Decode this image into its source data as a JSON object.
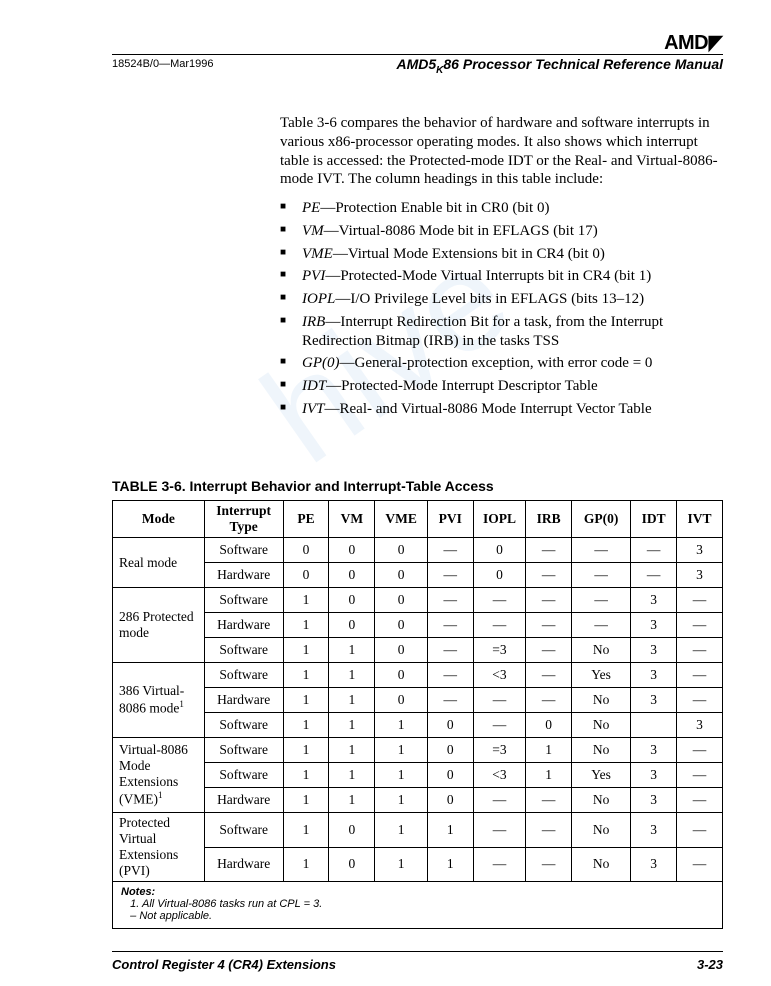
{
  "header": {
    "brand": "AMD",
    "doc_id": "18524B/0—Mar1996",
    "manual_title": "AMD5K86 Processor Technical Reference Manual",
    "manual_title_prefix": "AMD5",
    "manual_title_sub": "K",
    "manual_title_suffix": "86 Processor Technical Reference Manual"
  },
  "intro": "Table 3-6 compares the behavior of hardware and software interrupts in various x86-processor operating modes. It also shows which interrupt table is accessed: the Protected-mode IDT or the Real- and Virtual-8086-mode IVT. The column headings in this table include:",
  "bullets": [
    {
      "term": "PE",
      "desc": "—Protection Enable bit in CR0 (bit 0)"
    },
    {
      "term": "VM",
      "desc": "—Virtual-8086 Mode bit in EFLAGS (bit 17)"
    },
    {
      "term": "VME",
      "desc": "—Virtual Mode Extensions bit in CR4 (bit 0)"
    },
    {
      "term": "PVI",
      "desc": "—Protected-Mode Virtual Interrupts bit in CR4 (bit 1)"
    },
    {
      "term": "IOPL",
      "desc": "—I/O Privilege Level bits in EFLAGS (bits 13–12)"
    },
    {
      "term": "IRB",
      "desc": "—Interrupt Redirection Bit for a task, from the Interrupt Redirection Bitmap (IRB) in the tasks TSS"
    },
    {
      "term": "GP(0)",
      "desc": "—General-protection exception, with error code = 0"
    },
    {
      "term": "IDT",
      "desc": "—Protected-Mode Interrupt Descriptor Table"
    },
    {
      "term": "IVT",
      "desc": "—Real- and Virtual-8086 Mode Interrupt Vector Table"
    }
  ],
  "table": {
    "title": "TABLE 3-6.   Interrupt Behavior and Interrupt-Table Access",
    "columns": [
      "Mode",
      "Interrupt Type",
      "PE",
      "VM",
      "VME",
      "PVI",
      "IOPL",
      "IRB",
      "GP(0)",
      "IDT",
      "IVT"
    ],
    "col_widths": [
      "14%",
      "12%",
      "7%",
      "7%",
      "8%",
      "7%",
      "8%",
      "7%",
      "9%",
      "7%",
      "7%"
    ],
    "groups": [
      {
        "mode": "Real mode",
        "rowspan": 2,
        "rows": [
          [
            "Software",
            "0",
            "0",
            "0",
            "—",
            "0",
            "—",
            "—",
            "—",
            "3"
          ],
          [
            "Hardware",
            "0",
            "0",
            "0",
            "—",
            "0",
            "—",
            "—",
            "—",
            "3"
          ]
        ]
      },
      {
        "mode": "286 Protected mode",
        "rowspan": 3,
        "rows": [
          [
            "Software",
            "1",
            "0",
            "0",
            "—",
            "—",
            "—",
            "—",
            "3",
            "—"
          ],
          [
            "Hardware",
            "1",
            "0",
            "0",
            "—",
            "—",
            "—",
            "—",
            "3",
            "—"
          ],
          [
            "Software",
            "1",
            "1",
            "0",
            "—",
            "=3",
            "—",
            "No",
            "3",
            "—"
          ]
        ]
      },
      {
        "mode": "386 Virtual-8086 mode",
        "note": "1",
        "rowspan": 3,
        "rows": [
          [
            "Software",
            "1",
            "1",
            "0",
            "—",
            "<3",
            "—",
            "Yes",
            "3",
            "—"
          ],
          [
            "Hardware",
            "1",
            "1",
            "0",
            "—",
            "—",
            "—",
            "No",
            "3",
            "—"
          ],
          [
            "Software",
            "1",
            "1",
            "1",
            "0",
            "—",
            "0",
            "No",
            "",
            "3"
          ]
        ]
      },
      {
        "mode": "Virtual-8086 Mode Extensions (VME)",
        "note": "1",
        "rowspan": 3,
        "rows": [
          [
            "Software",
            "1",
            "1",
            "1",
            "0",
            "=3",
            "1",
            "No",
            "3",
            "—"
          ],
          [
            "Software",
            "1",
            "1",
            "1",
            "0",
            "<3",
            "1",
            "Yes",
            "3",
            "—"
          ],
          [
            "Hardware",
            "1",
            "1",
            "1",
            "0",
            "—",
            "—",
            "No",
            "3",
            "—"
          ]
        ]
      },
      {
        "mode": "Protected Virtual Extensions (PVI)",
        "rowspan": 2,
        "rows": [
          [
            "Software",
            "1",
            "0",
            "1",
            "1",
            "—",
            "—",
            "No",
            "3",
            "—"
          ],
          [
            "Hardware",
            "1",
            "0",
            "1",
            "1",
            "—",
            "—",
            "No",
            "3",
            "—"
          ]
        ]
      }
    ],
    "notes_label": "Notes:",
    "notes": [
      "1.   All Virtual-8086 tasks run at CPL = 3.",
      "–   Not applicable."
    ]
  },
  "footer": {
    "left": "Control Register 4 (CR4) Extensions",
    "right": "3-23"
  },
  "colors": {
    "text": "#000000",
    "background": "#ffffff",
    "rule": "#000000",
    "watermark": "rgba(120,170,220,0.12)"
  }
}
